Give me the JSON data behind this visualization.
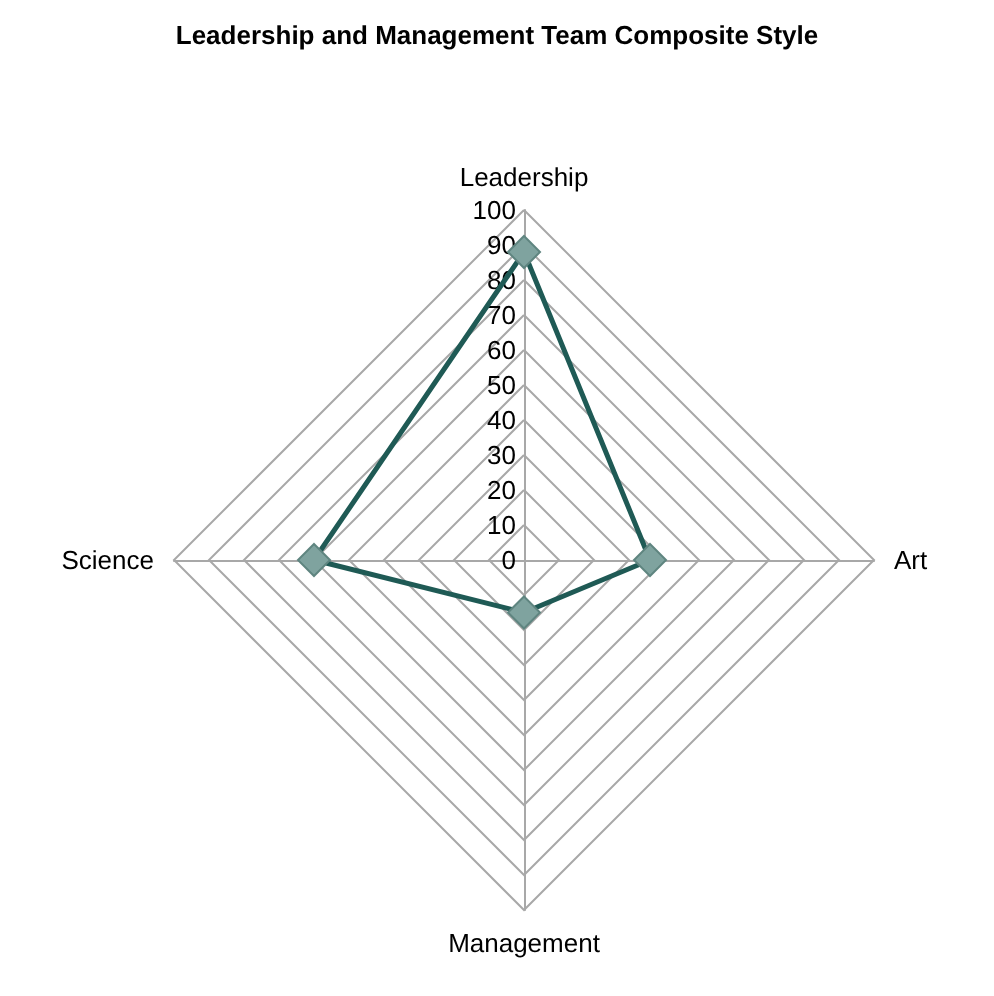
{
  "chart_data": {
    "type": "radar",
    "title": "Leadership and Management Team Composite Style",
    "categories": [
      "Leadership",
      "Art",
      "Management",
      "Science"
    ],
    "series": [
      {
        "color": "#1f5a55",
        "values": [
          88,
          36,
          15,
          60
        ]
      }
    ],
    "ylim": [
      0,
      100
    ],
    "yticks": [
      0,
      10,
      20,
      30,
      40,
      50,
      60,
      70,
      80,
      90,
      100
    ],
    "grid": true,
    "marker": "diamond"
  }
}
